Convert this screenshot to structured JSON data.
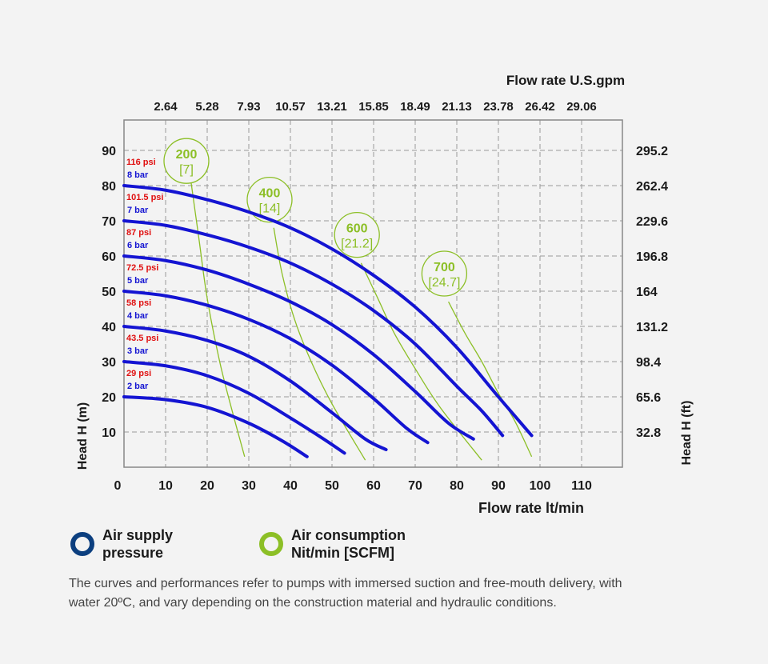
{
  "chart_data": {
    "type": "line",
    "x_bottom_label": "Flow rate lt/min",
    "x_top_label": "Flow rate U.S.gpm",
    "y_left_label": "Head H (m)",
    "y_right_label": "Head H (ft)",
    "x_range": [
      0,
      120
    ],
    "y_range": [
      0,
      100
    ],
    "grid": true,
    "x_bottom_ticks": [
      "0",
      "10",
      "20",
      "30",
      "40",
      "50",
      "60",
      "70",
      "80",
      "90",
      "100",
      "110"
    ],
    "x_bottom_tick_values": [
      0,
      10,
      20,
      30,
      40,
      50,
      60,
      70,
      80,
      90,
      100,
      110
    ],
    "x_top_ticks": [
      "2.64",
      "5.28",
      "7.93",
      "10.57",
      "13.21",
      "15.85",
      "18.49",
      "21.13",
      "23.78",
      "26.42",
      "29.06"
    ],
    "y_left_ticks": [
      "10",
      "20",
      "30",
      "40",
      "50",
      "60",
      "70",
      "80",
      "90"
    ],
    "y_left_tick_values": [
      10,
      20,
      30,
      40,
      50,
      60,
      70,
      80,
      90
    ],
    "y_right_ticks": [
      "32.8",
      "65.6",
      "98.4",
      "131.2",
      "164",
      "196.8",
      "229.6",
      "262.4",
      "295.2"
    ],
    "pressure_series": [
      {
        "psi": "29 psi",
        "bar": "2 bar",
        "points": [
          [
            0,
            20
          ],
          [
            10,
            19.2
          ],
          [
            20,
            17
          ],
          [
            30,
            12.5
          ],
          [
            38,
            7.5
          ],
          [
            44,
            3
          ]
        ]
      },
      {
        "psi": "43.5 psi",
        "bar": "3 bar",
        "points": [
          [
            0,
            30
          ],
          [
            10,
            28.8
          ],
          [
            20,
            26
          ],
          [
            30,
            21
          ],
          [
            40,
            14
          ],
          [
            48,
            8
          ],
          [
            53,
            4
          ]
        ]
      },
      {
        "psi": "58 psi",
        "bar": "4 bar",
        "points": [
          [
            0,
            40
          ],
          [
            10,
            38.7
          ],
          [
            20,
            36
          ],
          [
            30,
            31.5
          ],
          [
            40,
            24.5
          ],
          [
            50,
            15.5
          ],
          [
            58,
            8
          ],
          [
            63,
            5
          ]
        ]
      },
      {
        "psi": "72.5 psi",
        "bar": "5 bar",
        "points": [
          [
            0,
            50
          ],
          [
            10,
            48.7
          ],
          [
            20,
            46
          ],
          [
            30,
            42
          ],
          [
            40,
            36.5
          ],
          [
            50,
            29
          ],
          [
            60,
            19.5
          ],
          [
            68,
            11
          ],
          [
            73,
            7
          ]
        ]
      },
      {
        "psi": "87 psi",
        "bar": "6 bar",
        "points": [
          [
            0,
            60
          ],
          [
            10,
            58.7
          ],
          [
            20,
            56
          ],
          [
            30,
            52
          ],
          [
            40,
            47
          ],
          [
            50,
            40.5
          ],
          [
            60,
            32
          ],
          [
            70,
            21.5
          ],
          [
            78,
            12.5
          ],
          [
            84,
            8
          ]
        ]
      },
      {
        "psi": "101.5 psi",
        "bar": "7 bar",
        "points": [
          [
            0,
            70
          ],
          [
            10,
            68.7
          ],
          [
            20,
            66
          ],
          [
            30,
            62.5
          ],
          [
            40,
            58
          ],
          [
            50,
            52
          ],
          [
            60,
            44.5
          ],
          [
            70,
            35
          ],
          [
            80,
            23
          ],
          [
            86,
            16
          ],
          [
            91,
            9
          ]
        ]
      },
      {
        "psi": "116 psi",
        "bar": "8 bar",
        "points": [
          [
            0,
            80
          ],
          [
            10,
            78.7
          ],
          [
            20,
            76
          ],
          [
            30,
            72.5
          ],
          [
            40,
            68
          ],
          [
            50,
            62
          ],
          [
            60,
            54.5
          ],
          [
            70,
            45.5
          ],
          [
            80,
            34
          ],
          [
            90,
            20
          ],
          [
            98,
            9
          ]
        ]
      }
    ],
    "air_consumption_series": [
      {
        "value": "200",
        "scfm": "[7]",
        "label_at": [
          15,
          87
        ],
        "points": [
          [
            16,
            82
          ],
          [
            18,
            65
          ],
          [
            20,
            48
          ],
          [
            23,
            30
          ],
          [
            26,
            16
          ],
          [
            29,
            3
          ]
        ]
      },
      {
        "value": "400",
        "scfm": "[14]",
        "label_at": [
          35,
          76
        ],
        "points": [
          [
            36,
            68
          ],
          [
            38,
            55
          ],
          [
            41,
            42
          ],
          [
            45,
            30
          ],
          [
            50,
            18
          ],
          [
            58,
            2
          ]
        ]
      },
      {
        "value": "600",
        "scfm": "[21.2]",
        "label_at": [
          56,
          66
        ],
        "points": [
          [
            57,
            58
          ],
          [
            61,
            48
          ],
          [
            65,
            38
          ],
          [
            70,
            28
          ],
          [
            76,
            17
          ],
          [
            86,
            2
          ]
        ]
      },
      {
        "value": "700",
        "scfm": "[24.7]",
        "label_at": [
          77,
          55
        ],
        "points": [
          [
            78,
            47
          ],
          [
            82,
            38
          ],
          [
            86,
            30
          ],
          [
            90,
            21
          ],
          [
            94,
            13
          ],
          [
            98,
            3
          ]
        ]
      }
    ],
    "legend": [
      {
        "line1": "Air supply",
        "line2": "pressure",
        "color": "#0c3f7f"
      },
      {
        "line1": "Air consumption",
        "line2": "Nit/min [SCFM]",
        "color": "#8cbf26"
      }
    ]
  },
  "colors": {
    "curve_blue": "#1414d2",
    "air_green": "#8cbf26",
    "psi_red": "#e01010",
    "bar_blue": "#1414d2"
  },
  "footnote": {
    "line1": "The curves and performances refer to pumps with immersed suction and free-mouth delivery, with",
    "line2": "water 20ºC, and vary depending on the construction material and hydraulic conditions."
  }
}
